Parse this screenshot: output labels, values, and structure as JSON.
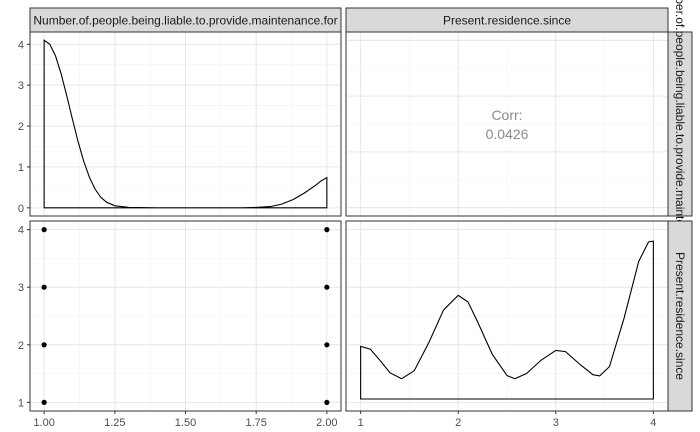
{
  "chart_data": {
    "type": "pairs",
    "variables": [
      "Number.of.people.being.liable.to.provide.maintenance.for",
      "Present.residence.since"
    ],
    "strips": {
      "top": [
        "Number.of.people.being.liable.to.provide.maintenance.for",
        "Present.residence.since"
      ],
      "right": [
        "Number.of.people.being.liable.to.provide.maintenance.for",
        "Present.residence.since"
      ]
    },
    "panels": {
      "density_1": {
        "type": "area",
        "xlim": [
          0.95,
          2.05
        ],
        "ylim": [
          -0.2,
          4.3
        ],
        "y_ticks": [
          0,
          1,
          2,
          3,
          4
        ],
        "x": [
          1.0,
          1.02,
          1.04,
          1.06,
          1.08,
          1.1,
          1.12,
          1.14,
          1.16,
          1.18,
          1.2,
          1.22,
          1.25,
          1.3,
          1.4,
          1.5,
          1.6,
          1.7,
          1.75,
          1.8,
          1.84,
          1.88,
          1.92,
          1.96,
          1.98,
          2.0
        ],
        "y": [
          4.1,
          4.0,
          3.72,
          3.28,
          2.74,
          2.17,
          1.62,
          1.14,
          0.75,
          0.46,
          0.26,
          0.14,
          0.05,
          0.01,
          0.0,
          0.0,
          0.0,
          0.0,
          0.01,
          0.03,
          0.09,
          0.2,
          0.36,
          0.55,
          0.66,
          0.74
        ]
      },
      "corr": {
        "type": "text",
        "label": "Corr:",
        "value": "0.0426"
      },
      "scatter": {
        "type": "scatter",
        "xlim": [
          0.95,
          2.05
        ],
        "ylim": [
          0.85,
          4.15
        ],
        "x_ticks": [
          1.0,
          1.25,
          1.5,
          1.75,
          2.0
        ],
        "x_tick_labels": [
          "1.00",
          "1.25",
          "1.50",
          "1.75",
          "2.00"
        ],
        "y_ticks": [
          1,
          2,
          3,
          4
        ],
        "points": [
          [
            1,
            1
          ],
          [
            1,
            2
          ],
          [
            1,
            3
          ],
          [
            1,
            4
          ],
          [
            2,
            1
          ],
          [
            2,
            2
          ],
          [
            2,
            3
          ],
          [
            2,
            4
          ]
        ]
      },
      "density_2": {
        "type": "area",
        "xlim": [
          0.85,
          4.15
        ],
        "ylim": [
          0.0,
          0.42
        ],
        "x_ticks": [
          1,
          2,
          3,
          4
        ],
        "x": [
          1.0,
          1.1,
          1.2,
          1.3,
          1.42,
          1.55,
          1.7,
          1.85,
          2.0,
          2.1,
          2.2,
          2.35,
          2.5,
          2.58,
          2.7,
          2.85,
          3.0,
          3.1,
          3.25,
          3.38,
          3.45,
          3.55,
          3.7,
          3.85,
          3.95,
          4.0
        ],
        "y": [
          0.13,
          0.123,
          0.095,
          0.065,
          0.05,
          0.07,
          0.14,
          0.22,
          0.256,
          0.24,
          0.19,
          0.11,
          0.058,
          0.05,
          0.063,
          0.096,
          0.12,
          0.117,
          0.085,
          0.06,
          0.057,
          0.08,
          0.2,
          0.34,
          0.388,
          0.39
        ]
      }
    }
  }
}
